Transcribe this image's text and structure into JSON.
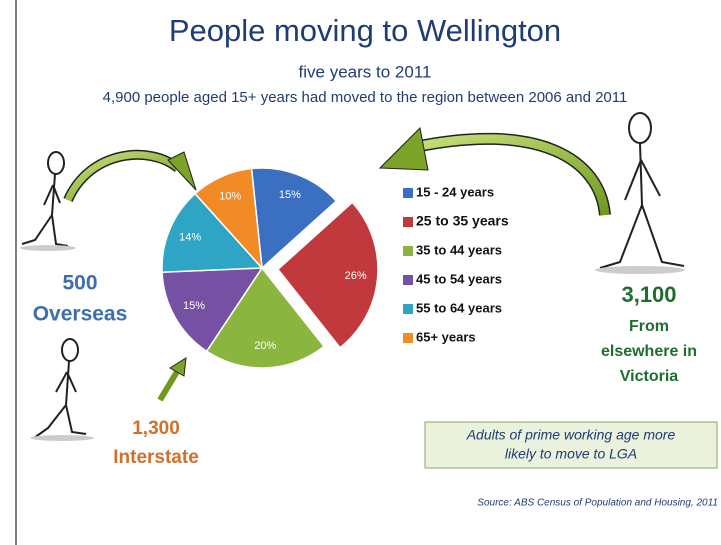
{
  "chart_data": {
    "type": "pie",
    "title": "People moving to Wellington",
    "subtitle": "five years to 2011",
    "description": "4,900 people aged 15+ years had moved to the region between 2006 and 2011",
    "categories": [
      "15 - 24 years",
      "25 to 35 years",
      "35 to 44 years",
      "45 to 54 years",
      "55 to 64 years",
      "65+ years"
    ],
    "values": [
      15,
      26,
      20,
      15,
      14,
      10
    ],
    "value_labels": [
      "15%",
      "26%",
      "20%",
      "15%",
      "14%",
      "10%"
    ],
    "colors": [
      "#3b6fc2",
      "#c1393c",
      "#8ab53f",
      "#7650a3",
      "#2fa5c6",
      "#f28a25"
    ],
    "exploded": [
      false,
      true,
      false,
      false,
      false,
      false
    ],
    "overseas": {
      "count": "500",
      "label": "Overseas"
    },
    "interstate": {
      "count": "1,300",
      "label": "Interstate"
    },
    "victoria": {
      "count": "3,100",
      "label": [
        "From",
        "elsewhere in",
        "Victoria"
      ]
    },
    "note": [
      "Adults of prime working age more",
      "likely to move to LGA"
    ],
    "source": "Source: ABS Census of Population and Housing, 2011"
  }
}
